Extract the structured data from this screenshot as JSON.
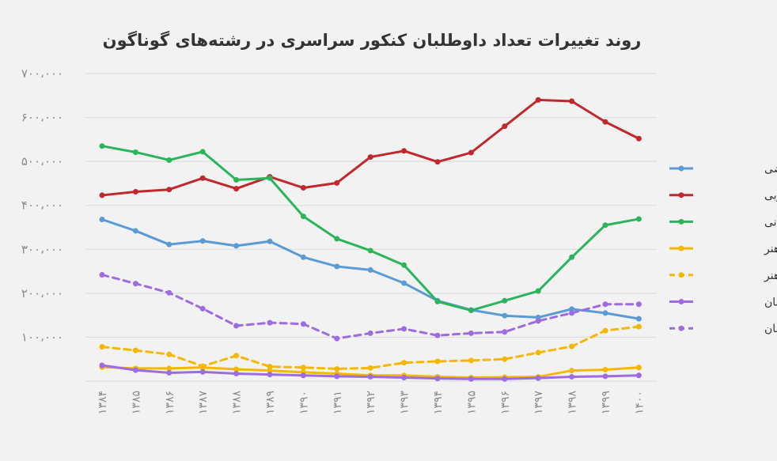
{
  "chart_data": {
    "type": "line",
    "title": "روند تغییرات تعداد داوطلبان کنکور سراسری در رشته‌های گوناگون",
    "xlabel": "",
    "ylabel": "",
    "ylim": [
      0,
      700000
    ],
    "y_ticks": [
      0,
      100000,
      200000,
      300000,
      400000,
      500000,
      600000,
      700000
    ],
    "y_tick_labels": [
      "",
      "۱۰۰،۰۰۰",
      "۲۰۰،۰۰۰",
      "۳۰۰،۰۰۰",
      "۴۰۰،۰۰۰",
      "۵۰۰،۰۰۰",
      "۶۰۰،۰۰۰",
      "۷۰۰،۰۰۰"
    ],
    "categories": [
      "۱۳۸۴",
      "۱۳۸۵",
      "۱۳۸۶",
      "۱۳۸۷",
      "۱۳۸۸",
      "۱۳۸۹",
      "۱۳۹۰",
      "۱۳۹۱",
      "۱۳۹۲",
      "۱۳۹۳",
      "۱۳۹۴",
      "۱۳۹۵",
      "۱۳۹۶",
      "۱۳۹۷",
      "۱۳۹۸",
      "۱۳۹۹",
      "۱۴۰۰"
    ],
    "grid": true,
    "legend_position": "right",
    "series": [
      {
        "name": "ریاضی",
        "color": "#5b9bd5",
        "dash": false,
        "values": [
          368000,
          342000,
          311000,
          319000,
          308000,
          318000,
          282000,
          261000,
          253000,
          223000,
          183000,
          162000,
          149000,
          145000,
          164000,
          155000,
          142000
        ]
      },
      {
        "name": "تجربی",
        "color": "#c0282d",
        "dash": false,
        "values": [
          423000,
          431000,
          436000,
          462000,
          438000,
          465000,
          440000,
          451000,
          510000,
          524000,
          499000,
          520000,
          580000,
          640000,
          637000,
          590000,
          552000
        ]
      },
      {
        "name": "انسانی",
        "color": "#2bb55a",
        "dash": false,
        "values": [
          535000,
          521000,
          503000,
          522000,
          458000,
          462000,
          375000,
          324000,
          297000,
          264000,
          181000,
          161000,
          183000,
          205000,
          282000,
          355000,
          369000
        ]
      },
      {
        "name": "هنر",
        "color": "#f5b800",
        "dash": false,
        "values": [
          32000,
          29000,
          29000,
          31000,
          27000,
          24000,
          20000,
          17000,
          13000,
          13000,
          10000,
          8000,
          9000,
          10000,
          24000,
          26000,
          31000
        ]
      },
      {
        "name": "علاقه‌مند هنر",
        "color": "#f5b800",
        "dash": true,
        "values": [
          78000,
          70000,
          61000,
          34000,
          58000,
          33000,
          31000,
          28000,
          30000,
          42000,
          45000,
          47000,
          50000,
          65000,
          79000,
          115000,
          124000
        ]
      },
      {
        "name": "زبان",
        "color": "#9c6ce0",
        "dash": false,
        "values": [
          36000,
          25000,
          19000,
          21000,
          17000,
          15000,
          13000,
          11000,
          10000,
          8000,
          6000,
          5000,
          5000,
          7000,
          10000,
          11000,
          13000
        ]
      },
      {
        "name": "علاقه‌مند زبان",
        "color": "#9c6ce0",
        "dash": true,
        "values": [
          242000,
          222000,
          201000,
          165000,
          126000,
          133000,
          130000,
          97000,
          109000,
          119000,
          104000,
          109000,
          112000,
          137000,
          155000,
          175000,
          175000
        ]
      }
    ]
  }
}
